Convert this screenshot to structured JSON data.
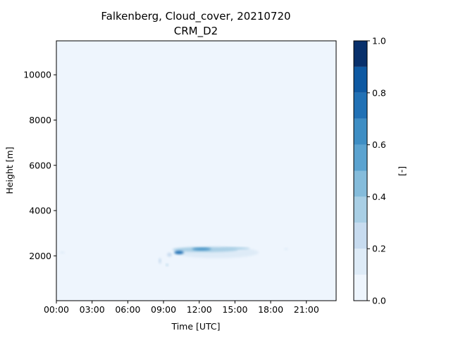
{
  "chart_data": {
    "type": "heatmap",
    "title": "Falkenberg, Cloud_cover, 20210720",
    "subtitle": "CRM_D2",
    "xlabel": "Time [UTC]",
    "ylabel": "Height [m]",
    "colorbar_label": "[-]",
    "x_ticks": [
      "00:00",
      "03:00",
      "06:00",
      "09:00",
      "12:00",
      "15:00",
      "18:00",
      "21:00"
    ],
    "x_tick_hours": [
      0,
      3,
      6,
      9,
      12,
      15,
      18,
      21
    ],
    "xlim_hours": [
      0,
      23.5
    ],
    "y_ticks": [
      2000,
      4000,
      6000,
      8000,
      10000
    ],
    "ylim": [
      20,
      11500
    ],
    "colorbar_ticks": [
      "0.0",
      "0.2",
      "0.4",
      "0.6",
      "0.8",
      "1.0"
    ],
    "colorbar_tick_values": [
      0,
      0.2,
      0.4,
      0.6,
      0.8,
      1.0
    ],
    "levels": [
      0,
      0.1,
      0.2,
      0.3,
      0.4,
      0.5,
      0.6,
      0.7,
      0.8,
      0.9,
      1.0
    ],
    "colors": [
      "#eef5fd",
      "#deebf7",
      "#c7dbef",
      "#a9cfe5",
      "#85bcdb",
      "#5ba3d0",
      "#3e8ec4",
      "#2171b5",
      "#0e59a2",
      "#08306b"
    ],
    "cloud_regions": [
      {
        "time_h": 0.5,
        "height": 2150,
        "time_width_h": 0.4,
        "height_width": 60,
        "value": 0.15
      },
      {
        "time_h": 8.7,
        "height": 1780,
        "time_width_h": 0.2,
        "height_width": 250,
        "value": 0.25
      },
      {
        "time_h": 9.3,
        "height": 1600,
        "time_width_h": 0.1,
        "height_width": 80,
        "value": 0.35
      },
      {
        "time_h": 9.5,
        "height": 2050,
        "time_width_h": 0.4,
        "height_width": 180,
        "value": 0.2
      },
      {
        "time_h": 13.5,
        "height": 2150,
        "time_width_h": 7.0,
        "height_width": 500,
        "value": 0.12
      },
      {
        "time_h": 12.5,
        "height": 2280,
        "time_width_h": 5.5,
        "height_width": 220,
        "value": 0.3
      },
      {
        "time_h": 10.3,
        "height": 2150,
        "time_width_h": 0.8,
        "height_width": 150,
        "value": 0.75
      },
      {
        "time_h": 12.2,
        "height": 2300,
        "time_width_h": 1.6,
        "height_width": 110,
        "value": 0.6
      },
      {
        "time_h": 15.0,
        "height": 2330,
        "time_width_h": 2.5,
        "height_width": 90,
        "value": 0.35
      },
      {
        "time_h": 19.3,
        "height": 2300,
        "time_width_h": 0.3,
        "height_width": 40,
        "value": 0.15
      }
    ]
  }
}
